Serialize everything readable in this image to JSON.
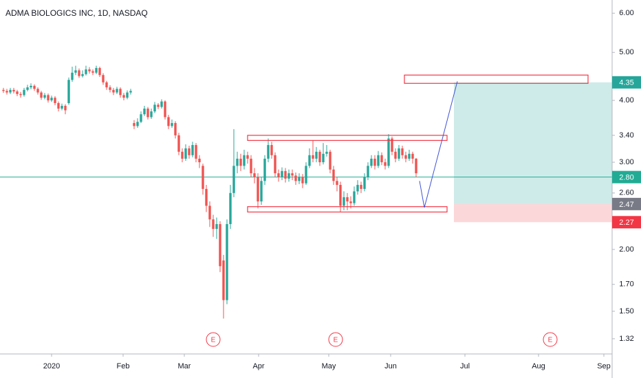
{
  "chart_data": {
    "type": "candlestick",
    "title": "ADMA BIOLOGICS INC, 1D, NASDAQ",
    "up_color": "#26a69a",
    "down_color": "#ef5350",
    "log_scale": true,
    "grid": false,
    "xlim": [
      -1,
      177
    ],
    "ylim": [
      1.23,
      6.38
    ],
    "xticks": [
      {
        "value": 14,
        "label": "2020"
      },
      {
        "value": 34.8,
        "label": "Feb"
      },
      {
        "value": 52.6,
        "label": "Mar"
      },
      {
        "value": 74.2,
        "label": "Apr"
      },
      {
        "value": 94.6,
        "label": "May"
      },
      {
        "value": 112.6,
        "label": "Jun"
      },
      {
        "value": 134.2,
        "label": "Jul"
      },
      {
        "value": 155.6,
        "label": "Aug"
      },
      {
        "value": 174.6,
        "label": "Sep"
      }
    ],
    "yticks": [
      {
        "value": 6,
        "label": "6.00"
      },
      {
        "value": 5,
        "label": "5.00"
      },
      {
        "value": 4,
        "label": "4.00"
      },
      {
        "value": 3.4,
        "label": "3.40"
      },
      {
        "value": 3,
        "label": "3.00"
      },
      {
        "value": 2.6,
        "label": "2.60"
      },
      {
        "value": 2,
        "label": "2.00"
      },
      {
        "value": 1.7,
        "label": "1.70"
      },
      {
        "value": 1.5,
        "label": "1.50"
      },
      1.32
    ],
    "open": [
      4.2,
      4.18,
      4.15,
      4.2,
      4.17,
      4.12,
      4.1,
      4.2,
      4.25,
      4.28,
      4.22,
      4.15,
      4.05,
      4.1,
      4.0,
      4.05,
      3.95,
      3.85,
      3.9,
      3.95,
      4.4,
      4.55,
      4.6,
      4.48,
      4.52,
      4.62,
      4.58,
      4.55,
      4.65,
      4.5,
      4.35,
      4.25,
      4.2,
      4.15,
      4.22,
      4.1,
      4.05,
      4.15,
      3.6,
      3.55,
      3.62,
      3.75,
      3.85,
      3.7,
      3.8,
      3.92,
      3.88,
      3.98,
      3.7,
      3.55,
      3.6,
      3.4,
      3.15,
      3.05,
      3.2,
      3.1,
      3.25,
      3.05,
      2.95,
      2.65,
      2.45,
      2.3,
      2.2,
      2.25,
      1.9,
      1.58,
      2.25,
      2.6,
      2.95,
      3.05,
      2.95,
      3.1,
      3.05,
      2.85,
      2.8,
      2.5,
      2.75,
      3.05,
      3.25,
      3.1,
      2.85,
      2.8,
      2.88,
      2.78,
      2.85,
      2.82,
      2.75,
      2.8,
      2.72,
      2.95,
      3.1,
      3.05,
      3.15,
      3.0,
      3.12,
      3.15,
      2.9,
      2.75,
      2.7,
      2.45,
      2.55,
      2.5,
      2.48,
      2.62,
      2.7,
      2.65,
      2.8,
      2.95,
      3.05,
      2.95,
      3.1,
      3.0,
      2.95,
      3.35,
      3.15,
      3.05,
      3.2,
      3.1,
      3.05,
      3.12,
      3.05
    ],
    "high": [
      4.24,
      4.22,
      4.24,
      4.24,
      4.2,
      4.16,
      4.24,
      4.3,
      4.33,
      4.31,
      4.25,
      4.18,
      4.14,
      4.13,
      4.09,
      4.08,
      3.98,
      3.94,
      3.93,
      4.45,
      4.68,
      4.7,
      4.64,
      4.6,
      4.7,
      4.67,
      4.62,
      4.7,
      4.68,
      4.54,
      4.38,
      4.29,
      4.24,
      4.26,
      4.25,
      4.14,
      4.19,
      4.22,
      3.65,
      3.68,
      3.8,
      3.9,
      3.88,
      3.85,
      3.97,
      3.95,
      4.02,
      4.0,
      3.74,
      3.66,
      3.63,
      3.44,
      3.2,
      3.26,
      3.24,
      3.3,
      3.28,
      3.1,
      2.98,
      2.7,
      2.5,
      2.35,
      2.32,
      2.28,
      1.95,
      2.3,
      2.7,
      3.5,
      3.15,
      3.12,
      3.18,
      3.15,
      3.1,
      2.92,
      2.85,
      2.8,
      3.1,
      3.35,
      3.3,
      3.14,
      2.9,
      2.93,
      2.92,
      2.9,
      2.9,
      2.86,
      2.85,
      2.84,
      3.0,
      3.2,
      3.32,
      3.22,
      3.18,
      3.28,
      3.25,
      3.18,
      2.95,
      2.8,
      2.74,
      2.62,
      2.6,
      2.56,
      2.68,
      2.76,
      2.74,
      2.85,
      3.0,
      3.1,
      3.1,
      3.16,
      3.14,
      3.05,
      3.42,
      3.38,
      3.2,
      3.25,
      3.24,
      3.15,
      3.18,
      3.15,
      3.06
    ],
    "low": [
      4.14,
      4.11,
      4.12,
      4.13,
      4.08,
      4.05,
      4.07,
      4.17,
      4.21,
      4.18,
      4.11,
      4.01,
      4.02,
      3.96,
      3.97,
      3.91,
      3.8,
      3.82,
      3.75,
      3.92,
      4.36,
      4.5,
      4.44,
      4.45,
      4.49,
      4.53,
      4.5,
      4.52,
      4.46,
      4.3,
      4.2,
      4.15,
      4.1,
      4.12,
      4.05,
      4.0,
      4.02,
      4.11,
      3.5,
      3.52,
      3.6,
      3.72,
      3.66,
      3.67,
      3.77,
      3.84,
      3.85,
      3.66,
      3.5,
      3.52,
      3.35,
      3.1,
      3.0,
      3.02,
      3.05,
      3.07,
      3.0,
      2.92,
      2.58,
      2.38,
      2.22,
      2.12,
      2.1,
      1.8,
      1.45,
      1.55,
      2.2,
      2.55,
      2.85,
      2.88,
      2.9,
      2.98,
      2.8,
      2.72,
      2.42,
      2.46,
      2.7,
      3.0,
      3.05,
      2.8,
      2.74,
      2.76,
      2.73,
      2.74,
      2.76,
      2.7,
      2.71,
      2.66,
      2.7,
      2.92,
      3.0,
      3.0,
      2.95,
      2.97,
      3.08,
      2.85,
      2.7,
      2.62,
      2.38,
      2.4,
      2.4,
      2.42,
      2.45,
      2.58,
      2.6,
      2.62,
      2.76,
      2.92,
      2.9,
      2.92,
      2.96,
      2.9,
      2.92,
      3.1,
      3.0,
      3.02,
      3.05,
      3.0,
      3.02,
      2.98,
      2.8
    ],
    "close": [
      4.18,
      4.15,
      4.2,
      4.17,
      4.12,
      4.1,
      4.2,
      4.25,
      4.28,
      4.22,
      4.15,
      4.05,
      4.1,
      4.0,
      4.05,
      3.95,
      3.85,
      3.9,
      3.82,
      4.4,
      4.55,
      4.6,
      4.48,
      4.52,
      4.62,
      4.58,
      4.55,
      4.65,
      4.5,
      4.35,
      4.25,
      4.2,
      4.15,
      4.22,
      4.1,
      4.05,
      4.15,
      4.18,
      3.55,
      3.62,
      3.75,
      3.85,
      3.7,
      3.8,
      3.92,
      3.88,
      3.98,
      3.7,
      3.55,
      3.6,
      3.4,
      3.15,
      3.05,
      3.2,
      3.1,
      3.25,
      3.05,
      3.0,
      2.65,
      2.45,
      2.3,
      2.2,
      2.25,
      1.85,
      1.58,
      2.25,
      2.6,
      2.95,
      3.05,
      2.95,
      3.1,
      3.05,
      2.85,
      2.8,
      2.5,
      2.75,
      3.05,
      3.25,
      3.1,
      2.85,
      2.8,
      2.88,
      2.78,
      2.85,
      2.82,
      2.75,
      2.8,
      2.72,
      2.95,
      3.1,
      3.05,
      3.15,
      3.0,
      3.12,
      3.15,
      2.9,
      2.75,
      2.7,
      2.45,
      2.55,
      2.5,
      2.48,
      2.62,
      2.7,
      2.65,
      2.8,
      2.95,
      3.05,
      2.95,
      3.1,
      3.0,
      2.95,
      3.35,
      3.15,
      3.05,
      3.2,
      3.1,
      3.05,
      3.12,
      3.05,
      2.85
    ],
    "price_line": {
      "value": 2.8,
      "label": "2.80",
      "color": "#22ab94"
    },
    "position": {
      "x": [
        131,
        177
      ],
      "target": {
        "value": 4.35,
        "label": "4.35",
        "color": "#26a69a"
      },
      "entry": {
        "value": 2.47,
        "label": "2.47",
        "color": "#787b86"
      },
      "stop": {
        "value": 2.27,
        "label": "2.27",
        "color": "#f23645"
      }
    },
    "zones": [
      {
        "x": [
          116.6,
          170
        ],
        "y": [
          4.33,
          4.5
        ]
      },
      {
        "x": [
          71,
          129
        ],
        "y": [
          3.32,
          3.4
        ]
      },
      {
        "x": [
          71,
          129
        ],
        "y": [
          2.38,
          2.44
        ]
      }
    ],
    "zone_color": "#f23645",
    "trend_line": {
      "x": [
        121,
        122.4,
        132
      ],
      "y": [
        2.75,
        2.43,
        4.37
      ],
      "color": "#3f51d5"
    },
    "events": [
      {
        "x": 61,
        "label": "E"
      },
      {
        "x": 96.6,
        "label": "E"
      },
      {
        "x": 159,
        "label": "E"
      }
    ],
    "event_color": "#f23645"
  }
}
